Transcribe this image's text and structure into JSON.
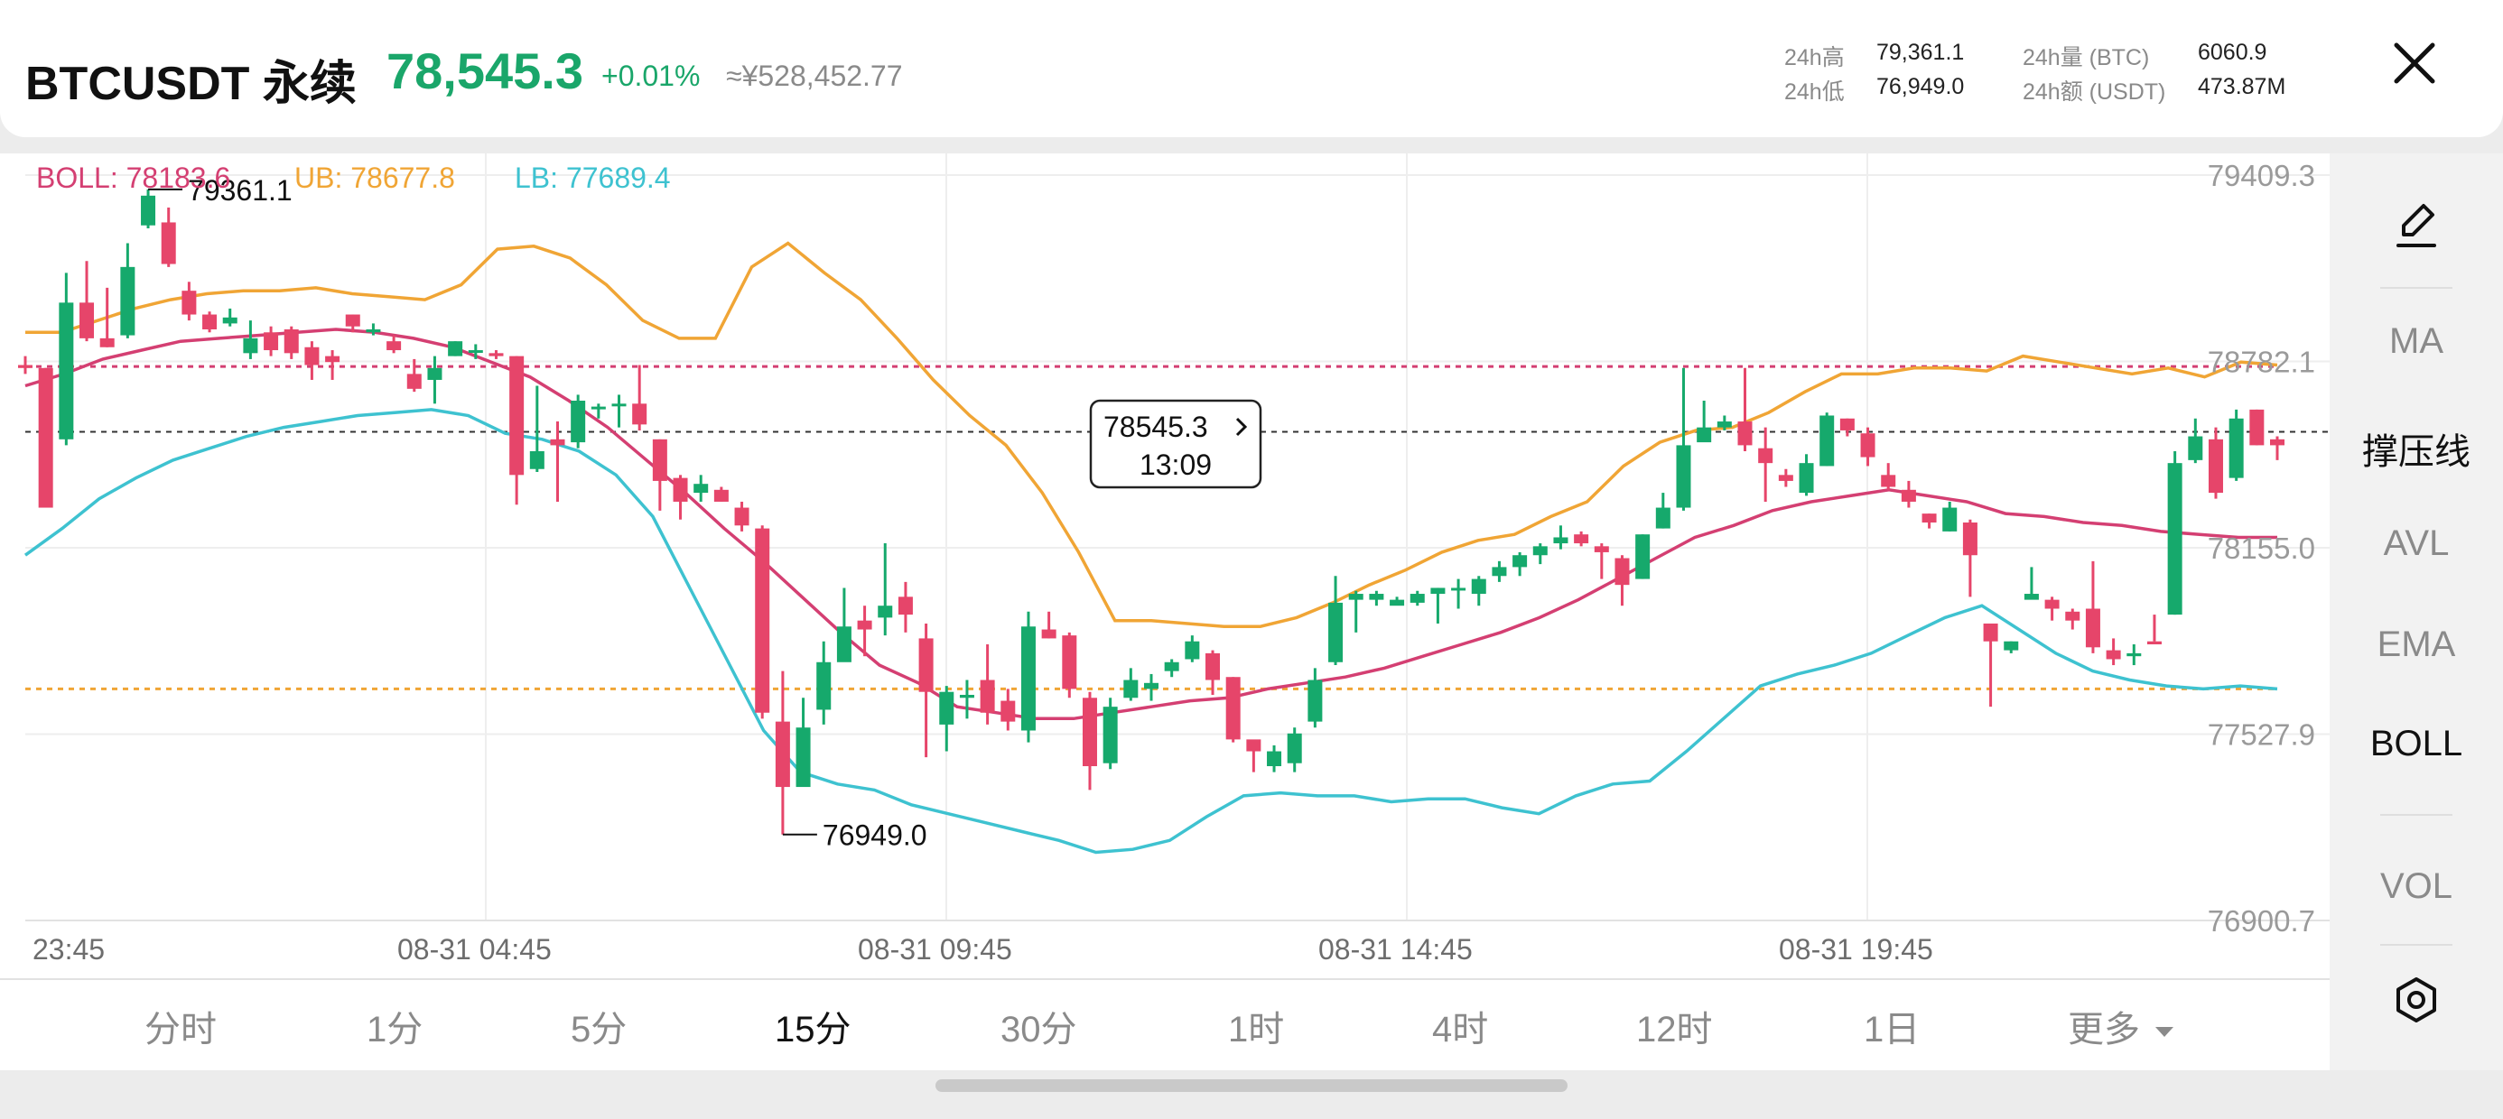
{
  "header": {
    "symbol": "BTCUSDT 永续",
    "last_price": "78,545.3",
    "change_pct": "+0.01%",
    "price_cny": "≈¥528,452.77",
    "stats": {
      "high_label": "24h高",
      "high_value": "79,361.1",
      "low_label": "24h低",
      "low_value": "76,949.0",
      "vol_label": "24h量 (BTC)",
      "vol_value": "6060.9",
      "turnover_label": "24h额 (USDT)",
      "turnover_value": "473.87M"
    }
  },
  "indicator_labels": {
    "boll": "BOLL: 78183.6",
    "ub": "UB: 78677.8",
    "lb": "LB: 77689.4"
  },
  "toolbar": {
    "items": [
      "MA",
      "撑压线",
      "AVL",
      "EMA",
      "BOLL",
      "VOL"
    ],
    "active": [
      "撑压线",
      "BOLL"
    ]
  },
  "timeframes": {
    "items": [
      "分时",
      "1分",
      "5分",
      "15分",
      "30分",
      "1时",
      "4时",
      "12时",
      "1日",
      "更多"
    ],
    "active": "15分"
  },
  "colors": {
    "up": "#16a96c",
    "down": "#e6456a",
    "boll": "#d43f72",
    "ub": "#f0a535",
    "lb": "#3ec2d0",
    "header_price": "#1aa66a"
  },
  "chart_data": {
    "type": "candlestick",
    "interval": "15分",
    "y_ticks": [
      "79409.3",
      "78782.1",
      "78155.0",
      "77527.9",
      "76900.7"
    ],
    "ylim": [
      76900.7,
      79409.3
    ],
    "x_ticks": [
      "23:45",
      "08-31 04:45",
      "08-31 09:45",
      "08-31 14:45",
      "08-31 19:45"
    ],
    "last_price_tag": "78545.3",
    "countdown": "13:09",
    "max_label": "79361.1",
    "min_label": "76949.0",
    "support_line": 77680,
    "resistance_line": 78765,
    "candles": [
      [
        78770,
        78760,
        78800,
        78740
      ],
      [
        78760,
        78290,
        78290,
        78760
      ],
      [
        78520,
        78980,
        79080,
        78500
      ],
      [
        78980,
        78860,
        79120,
        78850
      ],
      [
        78860,
        78830,
        79030,
        78830
      ],
      [
        78870,
        79100,
        79180,
        78860
      ],
      [
        79240,
        79340,
        79361.1,
        79230
      ],
      [
        79250,
        79110,
        79300,
        79100
      ],
      [
        79020,
        78940,
        79050,
        78920
      ],
      [
        78940,
        78890,
        78950,
        78880
      ],
      [
        78910,
        78930,
        78960,
        78900
      ],
      [
        78810,
        78860,
        78920,
        78790
      ],
      [
        78880,
        78820,
        78900,
        78800
      ],
      [
        78890,
        78810,
        78900,
        78790
      ],
      [
        78830,
        78770,
        78850,
        78720
      ],
      [
        78800,
        78780,
        78820,
        78720
      ],
      [
        78940,
        78900,
        78940,
        78880
      ],
      [
        78880,
        78890,
        78910,
        78870
      ],
      [
        78850,
        78820,
        78870,
        78810
      ],
      [
        78740,
        78690,
        78790,
        78680
      ],
      [
        78720,
        78760,
        78800,
        78640
      ],
      [
        78800,
        78850,
        78850,
        78800
      ],
      [
        78820,
        78820,
        78840,
        78790
      ],
      [
        78810,
        78800,
        78820,
        78790
      ],
      [
        78800,
        78400,
        78800,
        78300
      ],
      [
        78420,
        78480,
        78700,
        78410
      ],
      [
        78520,
        78500,
        78580,
        78310
      ],
      [
        78510,
        78650,
        78670,
        78490
      ],
      [
        78630,
        78630,
        78640,
        78590
      ],
      [
        78640,
        78640,
        78670,
        78560
      ],
      [
        78640,
        78570,
        78770,
        78550
      ],
      [
        78520,
        78380,
        78520,
        78280
      ],
      [
        78390,
        78310,
        78400,
        78250
      ],
      [
        78340,
        78370,
        78400,
        78310
      ],
      [
        78350,
        78310,
        78360,
        78310
      ],
      [
        78290,
        78230,
        78310,
        78210
      ],
      [
        78220,
        77600,
        78230,
        77580
      ],
      [
        77570,
        77350,
        77740,
        77190
      ],
      [
        77350,
        77550,
        77650,
        77350
      ],
      [
        77610,
        77770,
        77840,
        77560
      ],
      [
        77770,
        77890,
        78020,
        77780
      ],
      [
        77910,
        77880,
        77960,
        77790
      ],
      [
        77920,
        77960,
        78170,
        77860
      ],
      [
        77990,
        77930,
        78040,
        77870
      ],
      [
        77850,
        77670,
        77900,
        77450
      ],
      [
        77560,
        77670,
        77690,
        77470
      ],
      [
        77650,
        77660,
        77710,
        77580
      ],
      [
        77710,
        77600,
        77830,
        77560
      ],
      [
        77640,
        77570,
        77680,
        77540
      ],
      [
        77540,
        77890,
        77940,
        77500
      ],
      [
        77880,
        77850,
        77940,
        77850
      ],
      [
        77860,
        77680,
        77870,
        77650
      ],
      [
        77650,
        77420,
        77670,
        77340
      ],
      [
        77430,
        77620,
        77650,
        77410
      ],
      [
        77650,
        77710,
        77750,
        77640
      ],
      [
        77680,
        77700,
        77730,
        77640
      ],
      [
        77740,
        77770,
        77780,
        77720
      ],
      [
        77780,
        77840,
        77860,
        77770
      ],
      [
        77800,
        77710,
        77810,
        77660
      ],
      [
        77720,
        77510,
        77720,
        77500
      ],
      [
        77510,
        77470,
        77500,
        77400
      ],
      [
        77420,
        77470,
        77490,
        77400
      ],
      [
        77430,
        77530,
        77550,
        77400
      ],
      [
        77570,
        77710,
        77750,
        77550
      ],
      [
        77770,
        77970,
        78060,
        77760
      ],
      [
        77980,
        78000,
        78010,
        77870
      ],
      [
        77980,
        78000,
        78010,
        77960
      ],
      [
        77960,
        77980,
        77990,
        77970
      ],
      [
        77970,
        78000,
        78010,
        77960
      ],
      [
        78000,
        78020,
        78020,
        77900
      ],
      [
        78020,
        78020,
        78050,
        77950
      ],
      [
        78000,
        78050,
        78060,
        77960
      ],
      [
        78060,
        78090,
        78110,
        78040
      ],
      [
        78090,
        78130,
        78140,
        78060
      ],
      [
        78130,
        78160,
        78170,
        78100
      ],
      [
        78170,
        78190,
        78230,
        78150
      ],
      [
        78200,
        78170,
        78210,
        78160
      ],
      [
        78160,
        78140,
        78170,
        78050
      ],
      [
        78120,
        78030,
        78130,
        77960
      ],
      [
        78050,
        78200,
        78200,
        78050
      ],
      [
        78220,
        78290,
        78340,
        78220
      ],
      [
        78290,
        78500,
        78760,
        78280
      ],
      [
        78510,
        78560,
        78650,
        78520
      ],
      [
        78560,
        78580,
        78600,
        78550
      ],
      [
        78580,
        78500,
        78760,
        78480
      ],
      [
        78490,
        78440,
        78560,
        78310
      ],
      [
        78400,
        78380,
        78420,
        78360
      ],
      [
        78340,
        78440,
        78470,
        78330
      ],
      [
        78430,
        78600,
        78610,
        78430
      ],
      [
        78590,
        78550,
        78590,
        78530
      ],
      [
        78540,
        78460,
        78560,
        78430
      ],
      [
        78400,
        78360,
        78440,
        78350
      ],
      [
        78350,
        78310,
        78380,
        78290
      ],
      [
        78270,
        78240,
        78270,
        78220
      ],
      [
        78210,
        78290,
        78310,
        78210
      ],
      [
        78240,
        78130,
        78250,
        77990
      ],
      [
        77900,
        77840,
        77900,
        77620
      ],
      [
        77810,
        77840,
        77840,
        77800
      ],
      [
        77980,
        78000,
        78090,
        77990
      ],
      [
        77980,
        77950,
        77990,
        77910
      ],
      [
        77940,
        77910,
        77950,
        77880
      ],
      [
        77950,
        77820,
        78110,
        77800
      ],
      [
        77810,
        77780,
        77850,
        77760
      ],
      [
        77790,
        77800,
        77830,
        77760
      ],
      [
        77840,
        77830,
        77930,
        77840
      ],
      [
        77930,
        78440,
        78480,
        77930
      ],
      [
        78450,
        78530,
        78590,
        78440
      ],
      [
        78520,
        78340,
        78560,
        78320
      ],
      [
        78390,
        78590,
        78620,
        78380
      ],
      [
        78620,
        78500,
        78620,
        78500
      ],
      [
        78520,
        78500,
        78530,
        78450
      ]
    ],
    "boll": [
      [
        15,
        79.0,
        78.7
      ],
      [
        15,
        79.3,
        79.0
      ],
      [
        15,
        79.47,
        79.5
      ],
      [
        15,
        79.54,
        79.6
      ],
      [
        15,
        79.6,
        79.9
      ],
      [
        15,
        79.7,
        80.2
      ],
      [
        15,
        79.85,
        80.45
      ],
      [
        15,
        80.0,
        80.7
      ],
      [
        15,
        80.15,
        80.95
      ],
      [
        15,
        80.3,
        81.1
      ],
      [
        15,
        80.4,
        81.2
      ],
      [
        15,
        80.5,
        81.3
      ],
      [
        15,
        80.55,
        81.35
      ],
      [
        15,
        80.6,
        81.35
      ],
      [
        15,
        80.58,
        81.3
      ],
      [
        15,
        80.5,
        81.15
      ],
      [
        15,
        80.3,
        80.8
      ],
      [
        15,
        79.9,
        80.3
      ],
      [
        15,
        79.6,
        79.8
      ],
      [
        15,
        79.4,
        79.5
      ],
      [
        15,
        79.1,
        79.2
      ],
      [
        15,
        78.8,
        78.95
      ],
      [
        15,
        78.5,
        78.7
      ],
      [
        15,
        78.2,
        78.4
      ],
      [
        15,
        77.95,
        78.2
      ],
      [
        15,
        77.75,
        77.95
      ],
      [
        15,
        77.6,
        77.75
      ],
      [
        15,
        77.5,
        77.6
      ],
      [
        15,
        77.45,
        77.52
      ],
      [
        15,
        77.45,
        77.5
      ],
      [
        15,
        77.47,
        77.5
      ],
      [
        15,
        77.55,
        77.55
      ],
      [
        15,
        77.65,
        77.65
      ],
      [
        15,
        77.75,
        77.75
      ],
      [
        15,
        77.85,
        77.85
      ],
      [
        15,
        77.95,
        77.9
      ],
      [
        15,
        78.1,
        78.0
      ],
      [
        15,
        78.2,
        78.1
      ],
      [
        15,
        78.3,
        78.2
      ],
      [
        15,
        78.42,
        78.3
      ],
      [
        15,
        78.5,
        78.4
      ],
      [
        15,
        78.6,
        78.5
      ],
      [
        15,
        78.68,
        78.6
      ],
      [
        15,
        78.7,
        78.7
      ],
      [
        15,
        78.68,
        78.75
      ],
      [
        15,
        78.65,
        78.75
      ],
      [
        15,
        78.63,
        78.72
      ],
      [
        15,
        78.6,
        78.68
      ],
      [
        15,
        78.58,
        78.65
      ],
      [
        15,
        78.56,
        78.6
      ]
    ]
  }
}
